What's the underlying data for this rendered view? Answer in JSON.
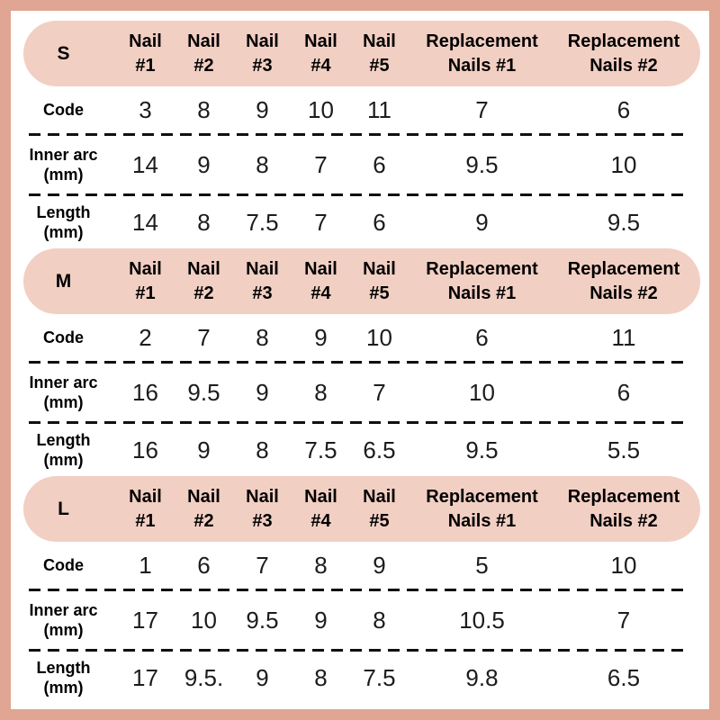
{
  "colors": {
    "frame": "#e0a593",
    "panel": "#ffffff",
    "header_pill": "#f2cfc3",
    "text": "#000000",
    "number_text": "#1c1c1c"
  },
  "chart_data": {
    "type": "table",
    "columns": [
      "Nail #1",
      "Nail #2",
      "Nail #3",
      "Nail #4",
      "Nail #5",
      "Replacement Nails #1",
      "Replacement Nails #2"
    ],
    "sections": [
      {
        "size": "S",
        "rows": [
          {
            "label": "Code",
            "values": [
              "3",
              "8",
              "9",
              "10",
              "11",
              "7",
              "6"
            ]
          },
          {
            "label": "Inner arc (mm)",
            "values": [
              "14",
              "9",
              "8",
              "7",
              "6",
              "9.5",
              "10"
            ]
          },
          {
            "label": "Length (mm)",
            "values": [
              "14",
              "8",
              "7.5",
              "7",
              "6",
              "9",
              "9.5"
            ]
          }
        ]
      },
      {
        "size": "M",
        "rows": [
          {
            "label": "Code",
            "values": [
              "2",
              "7",
              "8",
              "9",
              "10",
              "6",
              "11"
            ]
          },
          {
            "label": "Inner arc (mm)",
            "values": [
              "16",
              "9.5",
              "9",
              "8",
              "7",
              "10",
              "6"
            ]
          },
          {
            "label": "Length (mm)",
            "values": [
              "16",
              "9",
              "8",
              "7.5",
              "6.5",
              "9.5",
              "5.5"
            ]
          }
        ]
      },
      {
        "size": "L",
        "rows": [
          {
            "label": "Code",
            "values": [
              "1",
              "6",
              "7",
              "8",
              "9",
              "5",
              "10"
            ]
          },
          {
            "label": "Inner arc (mm)",
            "values": [
              "17",
              "10",
              "9.5",
              "9",
              "8",
              "10.5",
              "7"
            ]
          },
          {
            "label": "Length (mm)",
            "values": [
              "17",
              "9.5.",
              "9",
              "8",
              "7.5",
              "9.8",
              "6.5"
            ]
          }
        ]
      }
    ]
  }
}
